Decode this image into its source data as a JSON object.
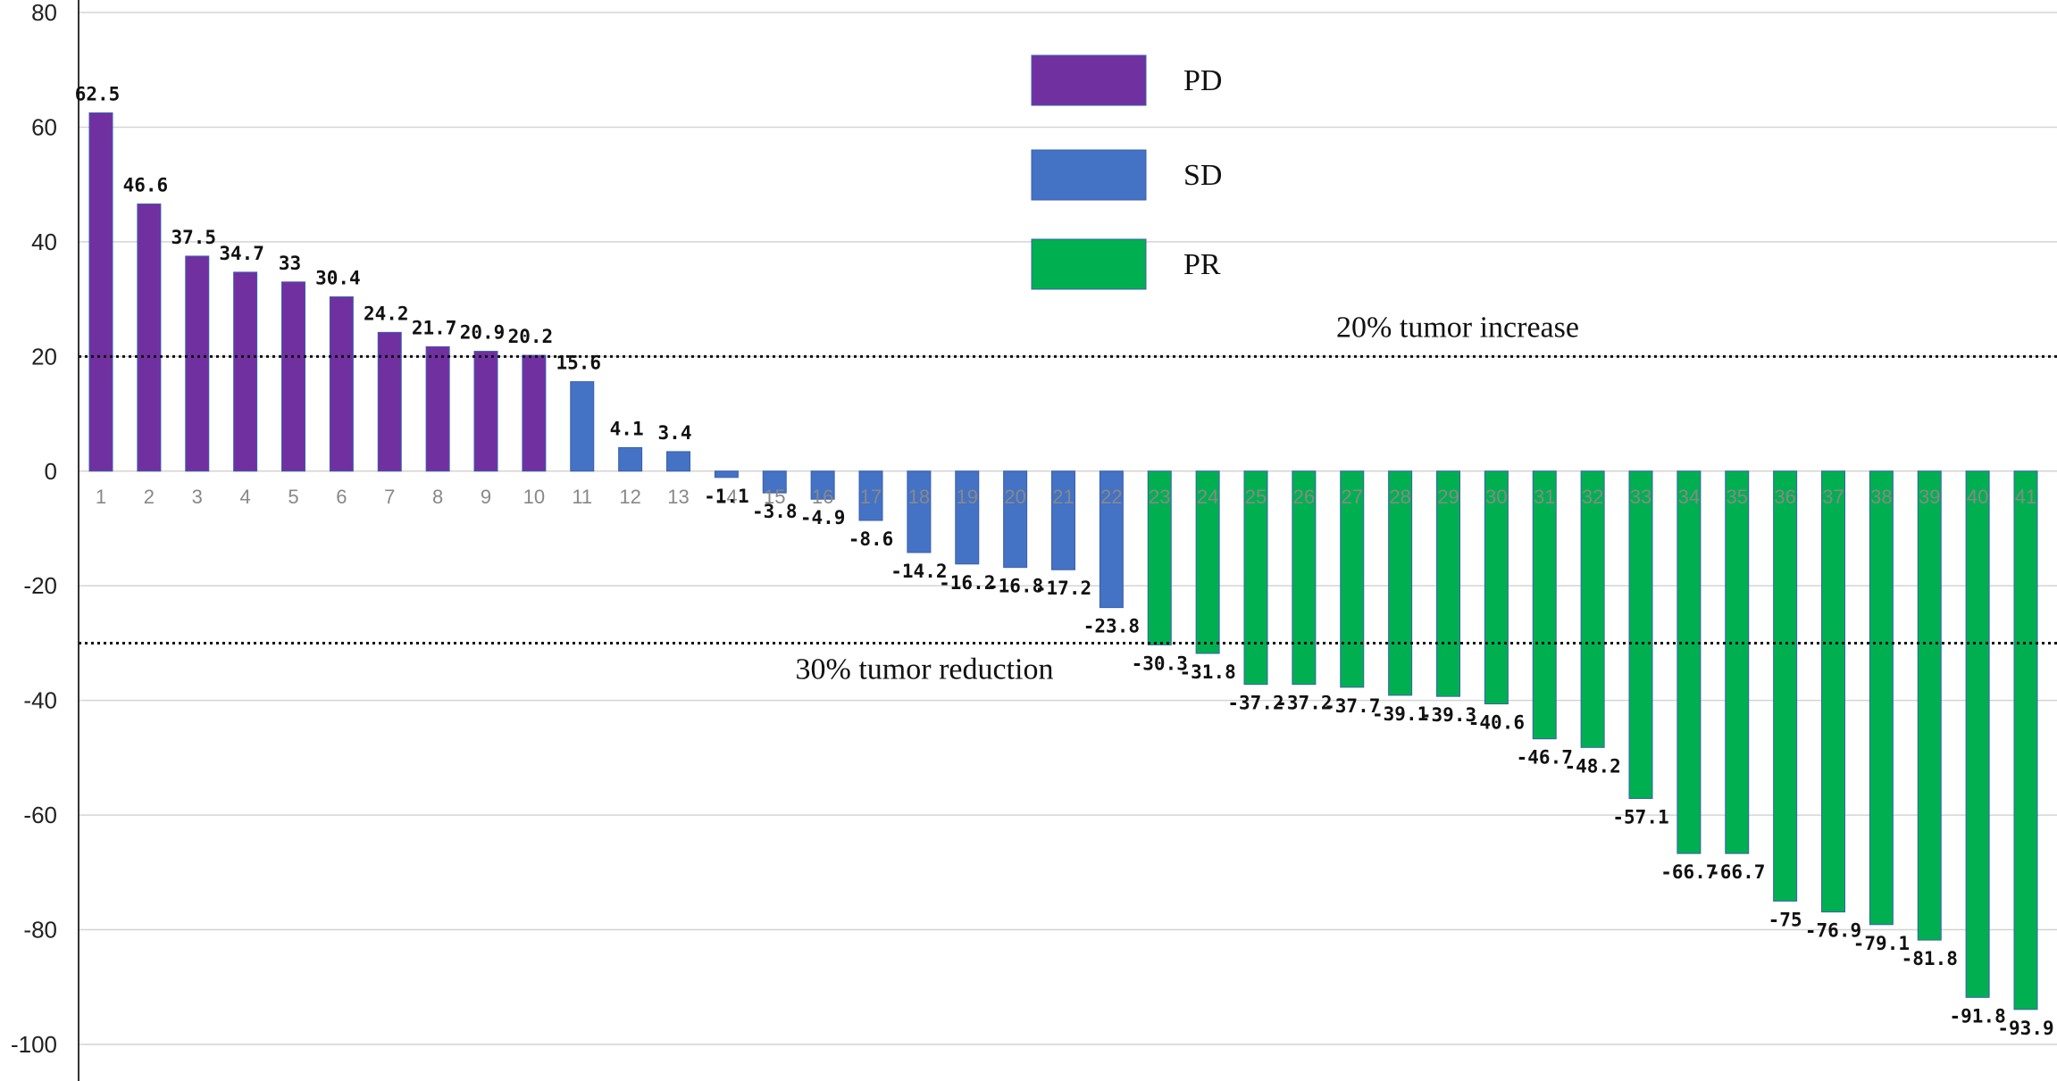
{
  "chart_data": {
    "type": "bar",
    "title": "",
    "xlabel": "",
    "ylabel": "",
    "ylim": [
      -100,
      80
    ],
    "yticks": [
      80,
      60,
      40,
      20,
      0,
      -20,
      -40,
      -60,
      -80,
      -100
    ],
    "ytick_labels": [
      "80",
      "60",
      "40",
      "20",
      "0",
      "-20",
      "-40",
      "-60",
      "-80",
      "-100"
    ],
    "grid": true,
    "categories": [
      "1",
      "2",
      "3",
      "4",
      "5",
      "6",
      "7",
      "8",
      "9",
      "10",
      "11",
      "12",
      "13",
      "14",
      "15",
      "16",
      "17",
      "18",
      "19",
      "20",
      "21",
      "22",
      "23",
      "24",
      "25",
      "26",
      "27",
      "28",
      "29",
      "30",
      "31",
      "32",
      "33",
      "34",
      "35",
      "36",
      "37",
      "38",
      "39",
      "40",
      "41"
    ],
    "values": [
      62.5,
      46.6,
      37.5,
      34.7,
      33,
      30.4,
      24.2,
      21.7,
      20.9,
      20.2,
      15.6,
      4.1,
      3.4,
      -1.1,
      -3.8,
      -4.9,
      -8.6,
      -14.2,
      -16.2,
      -16.8,
      -17.2,
      -23.8,
      -30.3,
      -31.8,
      -37.2,
      -37.2,
      -37.7,
      -39.1,
      -39.3,
      -40.6,
      -46.7,
      -48.2,
      -57.1,
      -66.7,
      -66.7,
      -75,
      -76.9,
      -79.1,
      -81.8,
      -91.8,
      -93.9
    ],
    "value_labels": [
      "62.5",
      "46.6",
      "37.5",
      "34.7",
      "33",
      "30.4",
      "24.2",
      "21.7",
      "20.9",
      "20.2",
      "15.6",
      "4.1",
      "3.4",
      "-1.1",
      "-3.8",
      "-4.9",
      "-8.6",
      "-14.2",
      "-16.2",
      "-16.8",
      "-17.2",
      "-23.8",
      "-30.3",
      "-31.8",
      "-37.2",
      "-37.2",
      "-37.7",
      "-39.1",
      "-39.3",
      "-40.6",
      "-46.7",
      "-48.2",
      "-57.1",
      "-66.7",
      "-66.7",
      "-75",
      "-76.9",
      "-79.1",
      "-81.8",
      "-91.8",
      "-93.9"
    ],
    "groups": [
      "PD",
      "PD",
      "PD",
      "PD",
      "PD",
      "PD",
      "PD",
      "PD",
      "PD",
      "PD",
      "SD",
      "SD",
      "SD",
      "SD",
      "SD",
      "SD",
      "SD",
      "SD",
      "SD",
      "SD",
      "SD",
      "SD",
      "PR",
      "PR",
      "PR",
      "PR",
      "PR",
      "PR",
      "PR",
      "PR",
      "PR",
      "PR",
      "PR",
      "PR",
      "PR",
      "PR",
      "PR",
      "PR",
      "PR",
      "PR",
      "PR"
    ],
    "legend": [
      {
        "name": "PD",
        "color": "#7030a0"
      },
      {
        "name": "SD",
        "color": "#4472c4"
      },
      {
        "name": "PR",
        "color": "#00b050"
      }
    ],
    "legend_position": "top-center",
    "reference_lines": [
      {
        "value": 20,
        "label": "20% tumor increase"
      },
      {
        "value": -30,
        "label": "30% tumor reduction"
      }
    ]
  }
}
